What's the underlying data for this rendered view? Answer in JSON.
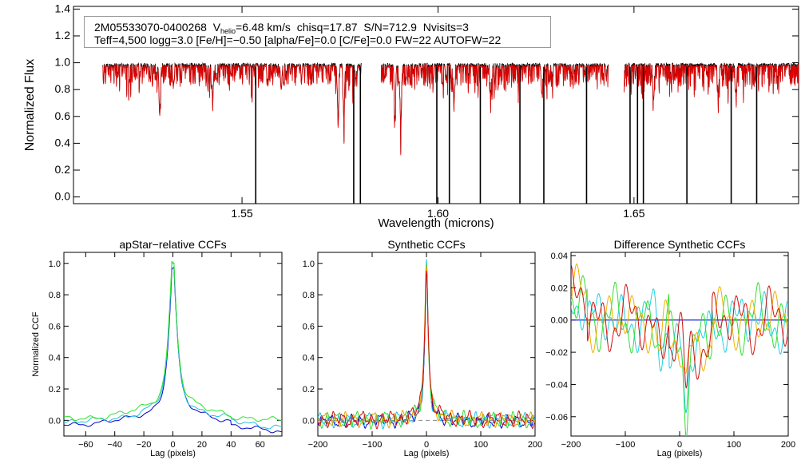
{
  "header": {
    "star_id": "2M05533070-0400268",
    "vhelio_label": "V",
    "vhelio_sub": "helio",
    "vhelio_value": "=6.48 km/s",
    "chisq": "chisq=17.87",
    "snr": "S/N=712.9",
    "nvisits": "Nvisits=3",
    "params": "Teff=4,500 logg=3.0 [Fe/H]=−0.50 [alpha/Fe]=0.0 [C/Fe]=0.0 FW=22 AUTOFW=22"
  },
  "chart_data": [
    {
      "type": "line",
      "title": "",
      "xlabel": "Wavelength (microns)",
      "ylabel": "Normalized Flux",
      "xlim": [
        1.507,
        1.692
      ],
      "ylim": [
        -0.05,
        1.42
      ],
      "xticks": [
        1.55,
        1.6,
        1.65
      ],
      "xtick_labels": [
        "1.55",
        "1.60",
        "1.65"
      ],
      "yticks": [
        0.0,
        0.2,
        0.4,
        0.6,
        0.8,
        1.0,
        1.2,
        1.4
      ],
      "ytick_labels": [
        "0.0",
        "0.2",
        "0.4",
        "0.6",
        "0.8",
        "1.0",
        "1.2",
        "1.4"
      ],
      "chips": [
        [
          1.5145,
          1.5805
        ],
        [
          1.5855,
          1.6435
        ],
        [
          1.6475,
          1.6955
        ]
      ],
      "series": [
        {
          "name": "observed",
          "color": "#000000"
        },
        {
          "name": "model",
          "color": "#e00000"
        }
      ],
      "bad_pixel_wavelengths": [
        1.5535,
        1.5785,
        1.5802,
        1.5997,
        1.6029,
        1.6108,
        1.6209,
        1.627,
        1.6379,
        1.649,
        1.6509,
        1.6524,
        1.6635,
        1.6748,
        1.6813,
        1.6931
      ],
      "deep_lines": [
        {
          "x": 1.529,
          "depth": 0.38
        },
        {
          "x": 1.5425,
          "depth": 0.25
        },
        {
          "x": 1.56,
          "depth": 0.18
        },
        {
          "x": 1.5745,
          "depth": 0.32
        },
        {
          "x": 1.576,
          "depth": 0.35
        },
        {
          "x": 1.589,
          "depth": 0.4
        },
        {
          "x": 1.5905,
          "depth": 0.45
        },
        {
          "x": 1.604,
          "depth": 0.22
        },
        {
          "x": 1.6135,
          "depth": 0.2
        },
        {
          "x": 1.6265,
          "depth": 0.22
        },
        {
          "x": 1.655,
          "depth": 0.25
        },
        {
          "x": 1.6715,
          "depth": 0.22
        },
        {
          "x": 1.676,
          "depth": 0.2
        }
      ]
    },
    {
      "type": "line",
      "title": "apStar−relative CCFs",
      "xlabel": "Lag (pixels)",
      "ylabel": "Normalized CCF",
      "xlim": [
        -75,
        75
      ],
      "ylim": [
        -0.1,
        1.07
      ],
      "xticks": [
        -60,
        -40,
        -20,
        0,
        20,
        40,
        60
      ],
      "xtick_labels": [
        "−60",
        "−40",
        "−20",
        "0",
        "20",
        "40",
        "60"
      ],
      "yticks": [
        0.0,
        0.2,
        0.4,
        0.6,
        0.8,
        1.0
      ],
      "ytick_labels": [
        "0.0",
        "0.2",
        "0.4",
        "0.6",
        "0.8",
        "1.0"
      ],
      "series": [
        {
          "name": "visit-1",
          "color": "#0000cc",
          "peak": 0.99,
          "width": 3.0,
          "wings": 0.18,
          "wing_width": 20,
          "offset": -0.02,
          "wobble": 0.01,
          "slope": -0.0008
        },
        {
          "name": "visit-2",
          "color": "#20c0e0",
          "peak": 0.99,
          "width": 3.0,
          "wings": 0.19,
          "wing_width": 21,
          "offset": -0.01,
          "wobble": 0.012,
          "slope": -0.0005
        },
        {
          "name": "visit-3",
          "color": "#30e030",
          "peak": 1.0,
          "width": 3.0,
          "wings": 0.2,
          "wing_width": 22,
          "offset": 0.005,
          "wobble": 0.012,
          "slope": -0.0002
        }
      ]
    },
    {
      "type": "line",
      "title": "Synthetic CCFs",
      "xlabel": "Lag (pixels)",
      "ylabel": "",
      "xlim": [
        -200,
        200
      ],
      "ylim": [
        -0.1,
        1.07
      ],
      "xticks": [
        -200,
        -100,
        0,
        100,
        200
      ],
      "xtick_labels": [
        "−200",
        "−100",
        "0",
        "100",
        "200"
      ],
      "yticks": [
        0.0,
        0.2,
        0.4,
        0.6,
        0.8,
        1.0
      ],
      "ytick_labels": [
        "0.0",
        "0.2",
        "0.4",
        "0.6",
        "0.8",
        "1.0"
      ],
      "zero_line": 0.0,
      "series": [
        {
          "name": "visit-1",
          "color": "#0000cc",
          "peak": 0.98,
          "width": 3.5,
          "wings": 0.14,
          "wing_width": 16,
          "offset": -0.005,
          "wobble": 0.025
        },
        {
          "name": "visit-2",
          "color": "#20c0e0",
          "peak": 0.98,
          "width": 3.5,
          "wings": 0.15,
          "wing_width": 16,
          "offset": 0.0,
          "wobble": 0.028
        },
        {
          "name": "visit-3",
          "color": "#30e030",
          "peak": 0.99,
          "width": 3.5,
          "wings": 0.16,
          "wing_width": 16,
          "offset": 0.003,
          "wobble": 0.03
        },
        {
          "name": "visit-4",
          "color": "#f0a000",
          "peak": 0.99,
          "width": 3.5,
          "wings": 0.16,
          "wing_width": 16,
          "offset": 0.004,
          "wobble": 0.028
        },
        {
          "name": "visit-5",
          "color": "#d01010",
          "peak": 1.0,
          "width": 3.5,
          "wings": 0.17,
          "wing_width": 16,
          "offset": 0.005,
          "wobble": 0.03
        }
      ]
    },
    {
      "type": "line",
      "title": "Difference Synthetic CCFs",
      "xlabel": "Lag (pixels)",
      "ylabel": "",
      "xlim": [
        -200,
        200
      ],
      "ylim": [
        -0.072,
        0.042
      ],
      "xticks": [
        -200,
        -100,
        0,
        100,
        200
      ],
      "xtick_labels": [
        "−200",
        "−100",
        "0",
        "100",
        "200"
      ],
      "yticks": [
        -0.06,
        -0.04,
        -0.02,
        0.0,
        0.02,
        0.04
      ],
      "ytick_labels": [
        "−0.06",
        "−0.04",
        "−0.02",
        "0.00",
        "0.02",
        "0.04"
      ],
      "series": [
        {
          "name": "reference",
          "color": "#2020d0",
          "flat": 0.0
        },
        {
          "name": "diff-1",
          "color": "#20d0e0",
          "amp": 0.016,
          "dip": -0.062
        },
        {
          "name": "diff-2",
          "color": "#30e030",
          "amp": 0.016,
          "dip": -0.05
        },
        {
          "name": "diff-3",
          "color": "#f0b000",
          "amp": 0.014,
          "dip": -0.04
        },
        {
          "name": "diff-4",
          "color": "#d01010",
          "amp": 0.016,
          "dip": -0.048
        }
      ]
    }
  ]
}
